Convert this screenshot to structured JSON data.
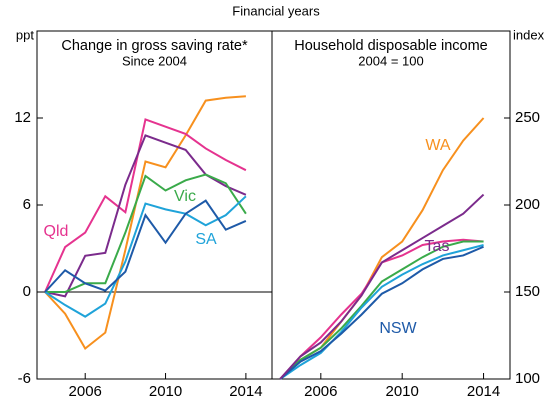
{
  "header": {
    "subtitle": "Financial years"
  },
  "chart_data": [
    {
      "type": "line",
      "title": "Change in gross saving rate*",
      "subtitle": "Since 2004",
      "y_label": "ppt",
      "y_axis_side": "left",
      "zero_line": true,
      "x": [
        2004,
        2005,
        2006,
        2007,
        2008,
        2009,
        2010,
        2011,
        2012,
        2013,
        2014
      ],
      "xlim": [
        2003.6,
        2015.3
      ],
      "xticks": [
        2006,
        2010,
        2014
      ],
      "ylim": [
        -6,
        18
      ],
      "yticks": [
        -6,
        0,
        6,
        12
      ],
      "series": [
        {
          "color": "#f7901e",
          "values": [
            0,
            -1.5,
            -3.9,
            -2.8,
            2.9,
            9,
            8.6,
            10.8,
            13.2,
            13.4,
            13.5
          ]
        },
        {
          "name": "Qld",
          "color": "#e5338f",
          "values": [
            0,
            3.1,
            4.1,
            6.6,
            5.5,
            11.9,
            11.4,
            10.9,
            9.9,
            9.1,
            8.4
          ]
        },
        {
          "color": "#7b2b8c",
          "values": [
            0,
            -0.3,
            2.5,
            2.7,
            7.4,
            10.8,
            10.3,
            9.8,
            8.1,
            7.3,
            6.7
          ]
        },
        {
          "name": "Vic",
          "color": "#3aaa4a",
          "values": [
            0,
            0,
            0.6,
            0.6,
            4.1,
            8,
            7,
            7.7,
            8.1,
            7.5,
            5.4
          ]
        },
        {
          "name": "SA",
          "color": "#1fa3d9",
          "values": [
            0,
            -0.9,
            -1.7,
            -0.8,
            2.1,
            6.1,
            5.7,
            5.4,
            4.6,
            5.3,
            6.6
          ]
        },
        {
          "color": "#1e5aa8",
          "values": [
            0,
            1.5,
            0.6,
            0.1,
            1.4,
            5.3,
            3.4,
            5.4,
            6.3,
            4.3,
            4.9
          ]
        }
      ]
    },
    {
      "type": "line",
      "title": "Household disposable income",
      "subtitle": "2004 = 100",
      "y_label": "index",
      "y_axis_side": "right",
      "zero_line": false,
      "x": [
        2004,
        2005,
        2006,
        2007,
        2008,
        2009,
        2010,
        2011,
        2012,
        2013,
        2014
      ],
      "xlim": [
        2003.6,
        2015.3
      ],
      "xticks": [
        2006,
        2010,
        2014
      ],
      "ylim": [
        100,
        300
      ],
      "yticks": [
        100,
        150,
        200,
        250
      ],
      "series": [
        {
          "name": "WA",
          "color": "#f7901e",
          "values": [
            100,
            111,
            118,
            133,
            148,
            170,
            179,
            197,
            220,
            237,
            250
          ]
        },
        {
          "color": "#e5338f",
          "values": [
            100,
            113,
            124,
            137,
            149,
            167,
            171,
            177,
            179,
            180,
            179
          ]
        },
        {
          "color": "#3aaa4a",
          "values": [
            100,
            111,
            118,
            129,
            142,
            156,
            163,
            170,
            176,
            179,
            179
          ]
        },
        {
          "color": "#1fa3d9",
          "values": [
            100,
            108,
            115,
            127,
            141,
            153,
            160,
            166,
            171,
            174,
            177
          ]
        },
        {
          "name": "NSW",
          "color": "#1e5aa8",
          "values": [
            100,
            110,
            116,
            126,
            137,
            149,
            155,
            163,
            169,
            171,
            176
          ]
        },
        {
          "name": "Tas",
          "color": "#7b2b8c",
          "values": [
            100,
            113,
            121,
            133,
            148,
            167,
            174,
            181,
            188,
            195,
            206
          ]
        }
      ]
    }
  ]
}
